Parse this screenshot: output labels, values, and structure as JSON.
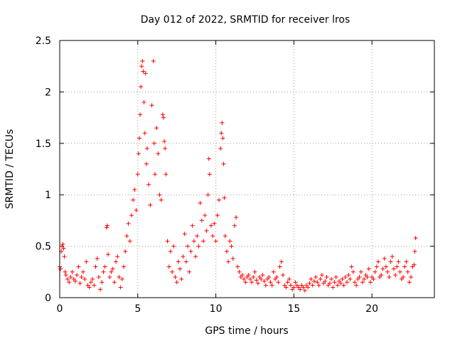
{
  "chart_data": {
    "type": "scatter",
    "title": "Day 012 of 2022, SRMTID for receiver lros",
    "xlabel": "GPS time / hours",
    "ylabel": "SRMTID / TECUs",
    "xlim": [
      0,
      24
    ],
    "ylim": [
      0,
      2.5
    ],
    "grid": true,
    "marker": "+",
    "series_color": "#ff0000",
    "xticks": [
      {
        "value": 0,
        "label": "0"
      },
      {
        "value": 5,
        "label": "5"
      },
      {
        "value": 10,
        "label": "10"
      },
      {
        "value": 15,
        "label": "15"
      },
      {
        "value": 20,
        "label": "20"
      }
    ],
    "yticks": [
      {
        "value": 0,
        "label": "0"
      },
      {
        "value": 0.5,
        "label": "0.5"
      },
      {
        "value": 1,
        "label": "1"
      },
      {
        "value": 1.5,
        "label": "1.5"
      },
      {
        "value": 2,
        "label": "2"
      },
      {
        "value": 2.5,
        "label": "2.5"
      }
    ],
    "series": [
      {
        "name": "SRMTID",
        "points": [
          [
            0.0,
            0.3
          ],
          [
            0.05,
            0.28
          ],
          [
            0.1,
            0.45
          ],
          [
            0.15,
            0.5
          ],
          [
            0.2,
            0.52
          ],
          [
            0.25,
            0.48
          ],
          [
            0.3,
            0.4
          ],
          [
            0.35,
            0.25
          ],
          [
            0.4,
            0.22
          ],
          [
            0.5,
            0.18
          ],
          [
            0.6,
            0.15
          ],
          [
            0.7,
            0.2
          ],
          [
            0.8,
            0.25
          ],
          [
            0.9,
            0.18
          ],
          [
            1.0,
            0.16
          ],
          [
            1.1,
            0.22
          ],
          [
            1.2,
            0.3
          ],
          [
            1.3,
            0.14
          ],
          [
            1.4,
            0.2
          ],
          [
            1.5,
            0.25
          ],
          [
            1.6,
            0.18
          ],
          [
            1.7,
            0.35
          ],
          [
            1.8,
            0.12
          ],
          [
            1.9,
            0.1
          ],
          [
            2.0,
            0.15
          ],
          [
            2.1,
            0.18
          ],
          [
            2.2,
            0.12
          ],
          [
            2.3,
            0.3
          ],
          [
            2.4,
            0.38
          ],
          [
            2.5,
            0.2
          ],
          [
            2.6,
            0.08
          ],
          [
            2.7,
            0.15
          ],
          [
            2.8,
            0.25
          ],
          [
            2.9,
            0.3
          ],
          [
            3.0,
            0.68
          ],
          [
            3.05,
            0.7
          ],
          [
            3.1,
            0.42
          ],
          [
            3.2,
            0.2
          ],
          [
            3.3,
            0.25
          ],
          [
            3.4,
            0.28
          ],
          [
            3.5,
            0.15
          ],
          [
            3.6,
            0.35
          ],
          [
            3.7,
            0.4
          ],
          [
            3.8,
            0.2
          ],
          [
            3.9,
            0.1
          ],
          [
            4.0,
            0.18
          ],
          [
            4.1,
            0.3
          ],
          [
            4.2,
            0.45
          ],
          [
            4.3,
            0.6
          ],
          [
            4.4,
            0.72
          ],
          [
            4.5,
            0.55
          ],
          [
            4.6,
            0.8
          ],
          [
            4.7,
            0.95
          ],
          [
            4.8,
            1.05
          ],
          [
            4.9,
            0.85
          ],
          [
            5.0,
            1.2
          ],
          [
            5.05,
            1.4
          ],
          [
            5.1,
            1.55
          ],
          [
            5.15,
            1.78
          ],
          [
            5.2,
            2.05
          ],
          [
            5.25,
            2.25
          ],
          [
            5.3,
            2.3
          ],
          [
            5.35,
            2.2
          ],
          [
            5.4,
            1.9
          ],
          [
            5.45,
            1.6
          ],
          [
            5.5,
            2.18
          ],
          [
            5.55,
            1.3
          ],
          [
            5.6,
            1.45
          ],
          [
            5.7,
            1.1
          ],
          [
            5.8,
            0.9
          ],
          [
            5.9,
            1.87
          ],
          [
            6.0,
            2.3
          ],
          [
            6.05,
            1.5
          ],
          [
            6.1,
            1.2
          ],
          [
            6.2,
            1.65
          ],
          [
            6.3,
            1.4
          ],
          [
            6.4,
            1.0
          ],
          [
            6.5,
            0.95
          ],
          [
            6.6,
            1.78
          ],
          [
            6.65,
            1.75
          ],
          [
            6.7,
            1.52
          ],
          [
            6.75,
            1.45
          ],
          [
            6.8,
            1.2
          ],
          [
            6.9,
            0.55
          ],
          [
            7.0,
            0.3
          ],
          [
            7.1,
            0.45
          ],
          [
            7.2,
            0.25
          ],
          [
            7.3,
            0.5
          ],
          [
            7.4,
            0.2
          ],
          [
            7.5,
            0.15
          ],
          [
            7.6,
            0.35
          ],
          [
            7.7,
            0.28
          ],
          [
            7.8,
            0.18
          ],
          [
            7.9,
            0.4
          ],
          [
            8.0,
            0.62
          ],
          [
            8.1,
            0.35
          ],
          [
            8.2,
            0.5
          ],
          [
            8.3,
            0.25
          ],
          [
            8.4,
            0.45
          ],
          [
            8.5,
            0.7
          ],
          [
            8.6,
            0.55
          ],
          [
            8.7,
            0.4
          ],
          [
            8.8,
            0.6
          ],
          [
            8.9,
            0.5
          ],
          [
            9.0,
            0.92
          ],
          [
            9.1,
            0.75
          ],
          [
            9.2,
            0.55
          ],
          [
            9.3,
            0.8
          ],
          [
            9.4,
            0.65
          ],
          [
            9.5,
            1.0
          ],
          [
            9.55,
            1.35
          ],
          [
            9.6,
            1.2
          ],
          [
            9.7,
            0.7
          ],
          [
            9.8,
            0.6
          ],
          [
            9.9,
            0.72
          ],
          [
            10.0,
            0.55
          ],
          [
            10.1,
            0.8
          ],
          [
            10.2,
            0.95
          ],
          [
            10.3,
            1.45
          ],
          [
            10.35,
            1.6
          ],
          [
            10.4,
            1.7
          ],
          [
            10.45,
            1.55
          ],
          [
            10.5,
            1.3
          ],
          [
            10.55,
            0.97
          ],
          [
            10.6,
            0.6
          ],
          [
            10.7,
            0.45
          ],
          [
            10.8,
            0.35
          ],
          [
            10.9,
            0.55
          ],
          [
            11.0,
            0.5
          ],
          [
            11.1,
            0.38
          ],
          [
            11.2,
            0.7
          ],
          [
            11.3,
            0.78
          ],
          [
            11.4,
            0.3
          ],
          [
            11.5,
            0.25
          ],
          [
            11.6,
            0.2
          ],
          [
            11.7,
            0.22
          ],
          [
            11.8,
            0.18
          ],
          [
            11.9,
            0.15
          ],
          [
            12.0,
            0.2
          ],
          [
            12.1,
            0.22
          ],
          [
            12.2,
            0.18
          ],
          [
            12.3,
            0.15
          ],
          [
            12.4,
            0.2
          ],
          [
            12.5,
            0.25
          ],
          [
            12.6,
            0.17
          ],
          [
            12.7,
            0.14
          ],
          [
            12.8,
            0.2
          ],
          [
            12.9,
            0.18
          ],
          [
            13.0,
            0.22
          ],
          [
            13.1,
            0.16
          ],
          [
            13.2,
            0.12
          ],
          [
            13.3,
            0.18
          ],
          [
            13.4,
            0.2
          ],
          [
            13.5,
            0.15
          ],
          [
            13.6,
            0.12
          ],
          [
            13.7,
            0.25
          ],
          [
            13.8,
            0.18
          ],
          [
            13.9,
            0.2
          ],
          [
            14.0,
            0.15
          ],
          [
            14.1,
            0.3
          ],
          [
            14.2,
            0.35
          ],
          [
            14.3,
            0.22
          ],
          [
            14.4,
            0.12
          ],
          [
            14.5,
            0.1
          ],
          [
            14.6,
            0.15
          ],
          [
            14.7,
            0.18
          ],
          [
            14.8,
            0.12
          ],
          [
            14.9,
            0.08
          ],
          [
            15.0,
            0.1
          ],
          [
            15.1,
            0.15
          ],
          [
            15.2,
            0.12
          ],
          [
            15.3,
            0.1
          ],
          [
            15.4,
            0.08
          ],
          [
            15.5,
            0.12
          ],
          [
            15.6,
            0.1
          ],
          [
            15.7,
            0.07
          ],
          [
            15.8,
            0.12
          ],
          [
            15.9,
            0.1
          ],
          [
            16.0,
            0.14
          ],
          [
            16.1,
            0.18
          ],
          [
            16.2,
            0.12
          ],
          [
            16.3,
            0.16
          ],
          [
            16.4,
            0.2
          ],
          [
            16.5,
            0.15
          ],
          [
            16.6,
            0.12
          ],
          [
            16.7,
            0.18
          ],
          [
            16.8,
            0.22
          ],
          [
            16.9,
            0.14
          ],
          [
            17.0,
            0.16
          ],
          [
            17.1,
            0.2
          ],
          [
            17.2,
            0.12
          ],
          [
            17.3,
            0.14
          ],
          [
            17.4,
            0.18
          ],
          [
            17.5,
            0.1
          ],
          [
            17.6,
            0.15
          ],
          [
            17.7,
            0.2
          ],
          [
            17.8,
            0.12
          ],
          [
            17.9,
            0.16
          ],
          [
            18.0,
            0.14
          ],
          [
            18.1,
            0.18
          ],
          [
            18.2,
            0.12
          ],
          [
            18.3,
            0.2
          ],
          [
            18.4,
            0.15
          ],
          [
            18.5,
            0.22
          ],
          [
            18.6,
            0.18
          ],
          [
            18.7,
            0.3
          ],
          [
            18.8,
            0.25
          ],
          [
            18.9,
            0.15
          ],
          [
            19.0,
            0.12
          ],
          [
            19.1,
            0.18
          ],
          [
            19.2,
            0.2
          ],
          [
            19.3,
            0.25
          ],
          [
            19.4,
            0.15
          ],
          [
            19.5,
            0.18
          ],
          [
            19.6,
            0.22
          ],
          [
            19.7,
            0.2
          ],
          [
            19.8,
            0.28
          ],
          [
            19.9,
            0.15
          ],
          [
            20.0,
            0.2
          ],
          [
            20.1,
            0.18
          ],
          [
            20.2,
            0.25
          ],
          [
            20.3,
            0.3
          ],
          [
            20.4,
            0.35
          ],
          [
            20.5,
            0.2
          ],
          [
            20.6,
            0.22
          ],
          [
            20.7,
            0.28
          ],
          [
            20.8,
            0.38
          ],
          [
            20.9,
            0.3
          ],
          [
            21.0,
            0.25
          ],
          [
            21.1,
            0.2
          ],
          [
            21.2,
            0.35
          ],
          [
            21.3,
            0.4
          ],
          [
            21.4,
            0.28
          ],
          [
            21.5,
            0.22
          ],
          [
            21.6,
            0.3
          ],
          [
            21.7,
            0.35
          ],
          [
            21.8,
            0.25
          ],
          [
            21.9,
            0.18
          ],
          [
            22.0,
            0.2
          ],
          [
            22.1,
            0.3
          ],
          [
            22.2,
            0.35
          ],
          [
            22.3,
            0.25
          ],
          [
            22.4,
            0.15
          ],
          [
            22.5,
            0.2
          ],
          [
            22.6,
            0.3
          ],
          [
            22.7,
            0.32
          ],
          [
            22.75,
            0.45
          ],
          [
            22.8,
            0.58
          ]
        ]
      }
    ]
  }
}
